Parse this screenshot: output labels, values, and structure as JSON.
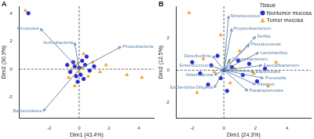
{
  "chart_data": [
    {
      "type": "scatter",
      "title": "A",
      "x_label": "Dim1 (43.4%)",
      "y_label": "Dim2 (30.3%)",
      "xlim": [
        -4,
        5
      ],
      "xticks": [
        -2,
        0,
        2,
        4
      ],
      "ylim": [
        -3.5,
        4.5
      ],
      "yticks": [
        -2,
        0,
        2,
        4
      ],
      "grid": false,
      "series": [
        {
          "name": "Nontumor mucosa",
          "color": "#2b2bd0",
          "marker": "circle",
          "values": [
            [
              -0.3,
              0.2
            ],
            [
              0.1,
              -0.4
            ],
            [
              0.4,
              0.3
            ],
            [
              -0.6,
              -0.2
            ],
            [
              0.2,
              0.6
            ],
            [
              -0.1,
              -0.9
            ],
            [
              0.7,
              -0.1
            ],
            [
              -0.4,
              0.5
            ],
            [
              0.3,
              -0.7
            ],
            [
              0.0,
              0.1
            ],
            [
              -0.8,
              0.3
            ],
            [
              0.5,
              0.9
            ],
            [
              -0.2,
              -0.5
            ],
            [
              1.0,
              0.2
            ],
            [
              -3.4,
              4.0
            ]
          ]
        },
        {
          "name": "Tumor mucosa",
          "color": "#f2a72e",
          "marker": "triangle",
          "values": [
            [
              0.2,
              0.1
            ],
            [
              -0.5,
              0.0
            ],
            [
              0.6,
              -0.5
            ],
            [
              -0.1,
              0.4
            ],
            [
              0.9,
              0.5
            ],
            [
              -0.7,
              -0.6
            ],
            [
              0.3,
              1.1
            ],
            [
              1.4,
              -0.2
            ],
            [
              -0.3,
              -1.2
            ],
            [
              3.2,
              -0.4
            ],
            [
              4.2,
              -0.6
            ],
            [
              -3.6,
              4.2
            ],
            [
              0.0,
              -0.2
            ],
            [
              1.8,
              0.3
            ]
          ]
        }
      ],
      "arrows": [
        {
          "label": "Firmicutes",
          "x": -2.6,
          "y": 2.9
        },
        {
          "label": "Actinobacteria",
          "x": -0.3,
          "y": 1.9
        },
        {
          "label": "Proteobacteria",
          "x": 2.8,
          "y": 1.6
        },
        {
          "label": "Bacteroidetes",
          "x": -2.4,
          "y": -3.0
        }
      ]
    },
    {
      "type": "scatter",
      "title": "B",
      "x_label": "Dim1 (24.3%)",
      "y_label": "Dim2 (12.5%)",
      "xlim": [
        -3,
        5.5
      ],
      "xticks": [
        -2,
        0,
        2,
        4
      ],
      "ylim": [
        -3,
        4
      ],
      "yticks": [
        -2,
        0,
        2
      ],
      "grid": false,
      "legend": "top right",
      "legend_title": "Tissue",
      "series": [
        {
          "name": "Nontumor mucosa",
          "color": "#2b2bd0",
          "marker": "circle",
          "values": [
            [
              -0.8,
              0.3
            ],
            [
              -0.2,
              -0.5
            ],
            [
              0.5,
              0.2
            ],
            [
              1.2,
              -0.3
            ],
            [
              -1.5,
              -0.2
            ],
            [
              0.9,
              0.6
            ],
            [
              2.1,
              -0.7
            ],
            [
              -0.4,
              0.9
            ],
            [
              0.2,
              -1.3
            ],
            [
              1.6,
              0.4
            ],
            [
              -1.0,
              -0.9
            ],
            [
              2.6,
              0.1
            ],
            [
              0.0,
              0.0
            ],
            [
              -2.0,
              0.5
            ]
          ]
        },
        {
          "name": "Tumor mucosa",
          "color": "#f2a72e",
          "marker": "triangle",
          "values": [
            [
              -0.6,
              -0.1
            ],
            [
              0.4,
              -0.8
            ],
            [
              1.0,
              1.2
            ],
            [
              -1.3,
              0.7
            ],
            [
              1.9,
              -0.2
            ],
            [
              2.8,
              -1.0
            ],
            [
              -0.2,
              2.2
            ],
            [
              0.7,
              0.1
            ],
            [
              -2.2,
              3.6
            ],
            [
              3.3,
              0.5
            ],
            [
              -1.7,
              -1.4
            ],
            [
              0.3,
              0.5
            ]
          ]
        }
      ],
      "arrows": [
        {
          "label": "Streptococcus",
          "x": 0.3,
          "y": 3.4
        },
        {
          "label": "Propionibacterium",
          "x": 0.5,
          "y": 2.6
        },
        {
          "label": "Delftia",
          "x": 2.0,
          "y": 2.1
        },
        {
          "label": "Pseudomonas",
          "x": 1.6,
          "y": 1.6
        },
        {
          "label": "Lactobacillus",
          "x": 2.2,
          "y": 1.1
        },
        {
          "label": "Corynebacterium",
          "x": 0.4,
          "y": 0.7
        },
        {
          "label": "Faecalibacterium",
          "x": 2.4,
          "y": 0.3
        },
        {
          "label": "Bacteroides",
          "x": 1.9,
          "y": -0.1
        },
        {
          "label": "Prevotella",
          "x": 2.5,
          "y": -0.5
        },
        {
          "label": "Alistipes",
          "x": 2.0,
          "y": -0.9
        },
        {
          "label": "Parabacteroides",
          "x": 1.5,
          "y": -1.3
        },
        {
          "label": "Desulfovibrio",
          "x": -0.7,
          "y": 0.9
        },
        {
          "label": "Enterococcus",
          "x": -0.9,
          "y": 0.3
        },
        {
          "label": "Akkermansia",
          "x": -0.6,
          "y": -0.3
        },
        {
          "label": "Escherichia-Shigella",
          "x": -0.6,
          "y": -1.1
        }
      ]
    }
  ]
}
